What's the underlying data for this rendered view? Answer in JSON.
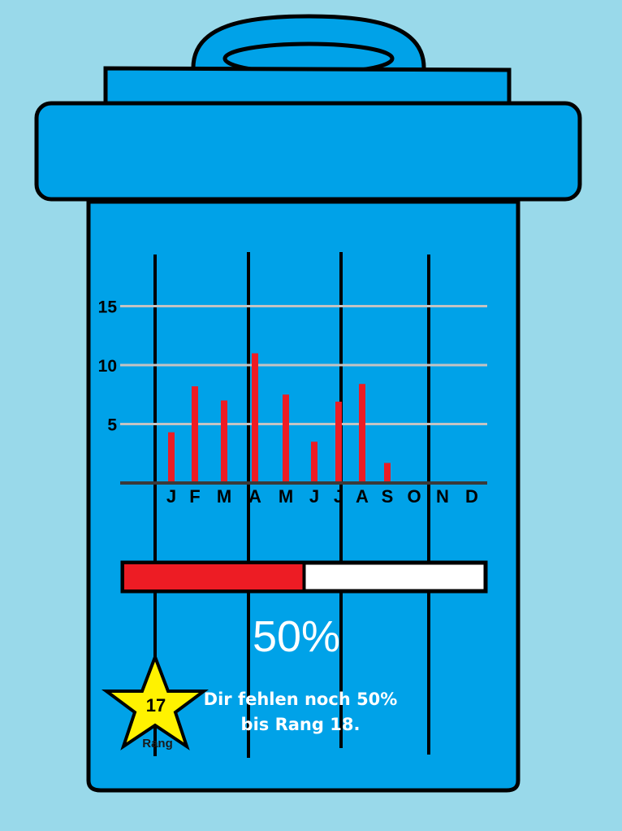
{
  "colors": {
    "background": "#99d9ea",
    "bin": "#00a2e8",
    "bars": "#ed1c24",
    "progress_fill": "#ed1c24",
    "progress_empty": "#ffffff",
    "gridline": "#c3c3c3",
    "star": "#fff200"
  },
  "icons": {
    "bin": "trash-bin-icon",
    "rank": "star-icon"
  },
  "chart_data": {
    "type": "bar",
    "categories": [
      "J",
      "F",
      "M",
      "A",
      "M",
      "J",
      "J",
      "A",
      "S",
      "O",
      "N",
      "D"
    ],
    "values": [
      4.3,
      8.2,
      7.0,
      11.0,
      7.5,
      3.5,
      6.9,
      8.4,
      1.7,
      0,
      0,
      0
    ],
    "yticks": [
      5,
      10,
      15
    ],
    "ylim": [
      0,
      16
    ],
    "grid": true
  },
  "progress": {
    "fraction": 0.5,
    "label": "50%"
  },
  "rank": {
    "current": "17",
    "word": "Rang"
  },
  "message": {
    "line1": "Dir fehlen noch 50%",
    "line2": "bis Rang 18."
  }
}
